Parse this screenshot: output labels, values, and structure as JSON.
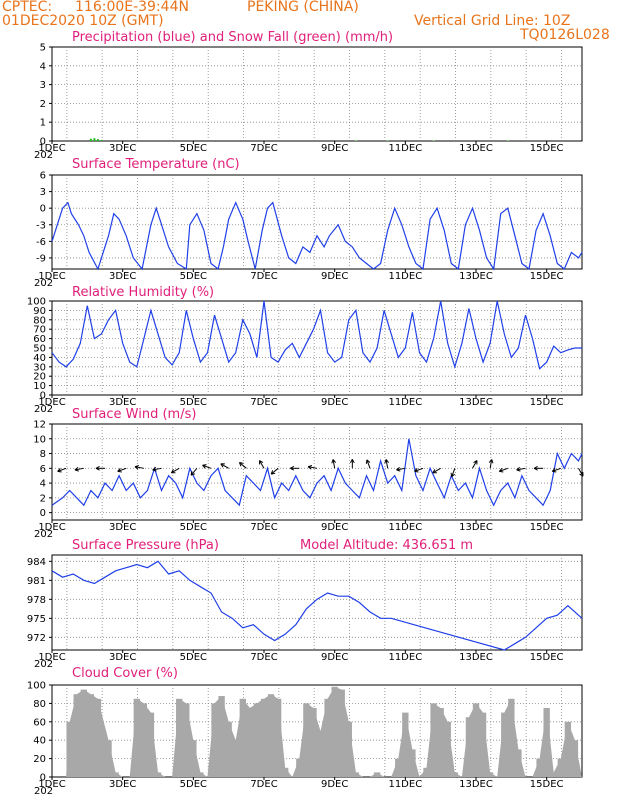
{
  "header": {
    "source": "CPTEC:",
    "location": "116:00E-39:44N",
    "station": "PEKING (CHINA)",
    "run": "01DEC2020 10Z (GMT)",
    "grid_note": "Vertical Grid Line: 10Z",
    "model_code": "TQ0126L028"
  },
  "colors": {
    "header": "#e8741c",
    "title": "#e0207a",
    "line": "#2040e8",
    "snow": "#20c020",
    "cloud": "#a8a8a8",
    "axis": "#000000"
  },
  "x_ticks": [
    "1DEC",
    "3DEC",
    "5DEC",
    "7DEC",
    "9DEC",
    "11DEC",
    "13DEC",
    "15DEC"
  ],
  "year_fragment": "202",
  "chart_data": [
    {
      "id": "precip",
      "type": "bar",
      "title": "Precipitation (blue) and Snow Fall (green) (mm/h)",
      "ylim": [
        0,
        5
      ],
      "yticks": [
        "0",
        "1",
        "2",
        "3",
        "4",
        "5"
      ],
      "x_range_days": [
        0,
        15
      ],
      "series": [
        {
          "color": "green",
          "points": [
            [
              1.1,
              0.12
            ],
            [
              1.2,
              0.15
            ],
            [
              1.3,
              0.1
            ],
            [
              1.4,
              0.05
            ],
            [
              8.6,
              0.03
            ],
            [
              9.5,
              0.03
            ],
            [
              10.8,
              0.03
            ],
            [
              12.9,
              0.03
            ]
          ]
        },
        {
          "color": "blue",
          "points": []
        }
      ]
    },
    {
      "id": "temp",
      "type": "line",
      "title": "Surface Temperature (nC)",
      "ylim": [
        -11,
        6
      ],
      "yticks": [
        "-9",
        "-6",
        "-3",
        "0",
        "3",
        "6"
      ],
      "x": [
        0,
        0.15,
        0.3,
        0.45,
        0.55,
        0.75,
        0.9,
        1.05,
        1.3,
        1.6,
        1.75,
        1.9,
        2.1,
        2.3,
        2.55,
        2.8,
        2.95,
        3.05,
        3.3,
        3.55,
        3.8,
        3.9,
        4.1,
        4.3,
        4.5,
        4.7,
        4.85,
        5.0,
        5.2,
        5.4,
        5.55,
        5.75,
        5.95,
        6.1,
        6.25,
        6.5,
        6.7,
        6.9,
        7.1,
        7.3,
        7.5,
        7.7,
        7.85,
        8.1,
        8.3,
        8.5,
        8.7,
        8.9,
        9.1,
        9.3,
        9.5,
        9.7,
        9.9,
        10.1,
        10.3,
        10.5,
        10.7,
        10.9,
        11.1,
        11.3,
        11.5,
        11.7,
        11.9,
        12.1,
        12.3,
        12.5,
        12.7,
        12.9,
        13.1,
        13.3,
        13.5,
        13.7,
        13.9,
        14.1,
        14.3,
        14.5,
        14.7,
        14.9,
        15
      ],
      "y": [
        -6,
        -3,
        0,
        1,
        -1,
        -3,
        -5,
        -8,
        -11,
        -5,
        -1,
        -2,
        -5,
        -9,
        -11,
        -3,
        0,
        -2,
        -7,
        -10,
        -11,
        -3,
        -1,
        -4,
        -10,
        -11,
        -7,
        -2,
        1,
        -2,
        -6,
        -11,
        -4,
        0,
        1,
        -5,
        -9,
        -10,
        -7,
        -8,
        -5,
        -7,
        -5,
        -3,
        -6,
        -7,
        -9,
        -10,
        -11,
        -10,
        -4,
        0,
        -3,
        -7,
        -10,
        -11,
        -2,
        0,
        -4,
        -10,
        -11,
        -3,
        0,
        -4,
        -9,
        -11,
        -1,
        0,
        -5,
        -10,
        -11,
        -4,
        -1,
        -5,
        -10,
        -11,
        -8,
        -9,
        -8
      ],
      "x_tick_offset_days": 0
    },
    {
      "id": "rh",
      "type": "line",
      "title": "Relative Humidity (%)",
      "ylim": [
        0,
        100
      ],
      "yticks": [
        "0",
        "10",
        "20",
        "30",
        "40",
        "50",
        "60",
        "70",
        "80",
        "90",
        "100"
      ],
      "x": [
        0,
        0.2,
        0.4,
        0.6,
        0.8,
        1.0,
        1.2,
        1.4,
        1.6,
        1.8,
        2.0,
        2.2,
        2.4,
        2.6,
        2.8,
        3.0,
        3.2,
        3.4,
        3.6,
        3.8,
        4.0,
        4.2,
        4.4,
        4.6,
        4.8,
        5.0,
        5.2,
        5.4,
        5.6,
        5.8,
        6.0,
        6.2,
        6.4,
        6.6,
        6.8,
        7.0,
        7.2,
        7.4,
        7.6,
        7.8,
        8.0,
        8.2,
        8.4,
        8.6,
        8.8,
        9.0,
        9.2,
        9.4,
        9.6,
        9.8,
        10.0,
        10.2,
        10.4,
        10.6,
        10.8,
        11.0,
        11.2,
        11.4,
        11.6,
        11.8,
        12.0,
        12.2,
        12.4,
        12.6,
        12.8,
        13.0,
        13.2,
        13.4,
        13.6,
        13.8,
        14.0,
        14.2,
        14.4,
        14.6,
        14.8,
        15.0
      ],
      "y": [
        45,
        35,
        30,
        38,
        55,
        95,
        60,
        65,
        80,
        90,
        55,
        35,
        30,
        60,
        90,
        65,
        40,
        32,
        45,
        90,
        60,
        35,
        45,
        85,
        60,
        35,
        45,
        80,
        65,
        40,
        100,
        40,
        35,
        48,
        55,
        40,
        55,
        70,
        90,
        45,
        35,
        40,
        80,
        90,
        45,
        35,
        50,
        90,
        65,
        40,
        50,
        88,
        45,
        35,
        60,
        100,
        55,
        30,
        55,
        92,
        60,
        35,
        55,
        100,
        65,
        40,
        50,
        85,
        60,
        28,
        35,
        52,
        45,
        48,
        50,
        50
      ],
      "x_tick_offset_days": 0
    },
    {
      "id": "wind",
      "type": "line",
      "title": "Surface Wind (m/s)",
      "ylim": [
        -1,
        12
      ],
      "yticks": [
        "0",
        "2",
        "4",
        "6",
        "8",
        "10",
        "12"
      ],
      "x": [
        0,
        0.3,
        0.5,
        0.7,
        0.9,
        1.1,
        1.3,
        1.5,
        1.7,
        1.9,
        2.1,
        2.3,
        2.5,
        2.7,
        2.9,
        3.1,
        3.3,
        3.5,
        3.7,
        3.9,
        4.1,
        4.3,
        4.5,
        4.7,
        4.9,
        5.1,
        5.3,
        5.5,
        5.7,
        5.9,
        6.1,
        6.3,
        6.5,
        6.7,
        6.9,
        7.1,
        7.3,
        7.5,
        7.7,
        7.9,
        8.1,
        8.3,
        8.5,
        8.7,
        8.9,
        9.1,
        9.3,
        9.5,
        9.7,
        9.9,
        10.1,
        10.3,
        10.5,
        10.7,
        10.9,
        11.1,
        11.3,
        11.5,
        11.7,
        11.9,
        12.1,
        12.3,
        12.5,
        12.7,
        12.9,
        13.1,
        13.3,
        13.5,
        13.7,
        13.9,
        14.1,
        14.3,
        14.5,
        14.7,
        14.9,
        15.0
      ],
      "y": [
        1,
        2,
        3,
        2,
        1,
        3,
        2,
        4,
        3,
        5,
        3,
        4,
        2,
        3,
        6,
        3,
        5,
        4,
        2,
        6,
        4,
        3,
        5,
        6,
        3,
        2,
        1,
        5,
        4,
        3,
        6,
        2,
        4,
        3,
        5,
        3,
        2,
        4,
        5,
        3,
        6,
        4,
        3,
        2,
        5,
        3,
        7,
        4,
        5,
        3,
        10,
        5,
        3,
        6,
        4,
        2,
        5,
        3,
        4,
        2,
        6,
        3,
        1,
        3,
        4,
        2,
        5,
        3,
        2,
        1,
        3,
        8,
        6,
        8,
        7,
        8
      ],
      "x_tick_offset_days": 0
    },
    {
      "id": "pressure",
      "type": "line",
      "title": "Surface Pressure (hPa)",
      "annotation": "Model Altitude: 436.651 m",
      "ylim": [
        970,
        985
      ],
      "yticks": [
        "972",
        "975",
        "978",
        "981",
        "984"
      ],
      "x": [
        0,
        0.3,
        0.6,
        0.9,
        1.2,
        1.5,
        1.8,
        2.1,
        2.4,
        2.7,
        3.0,
        3.3,
        3.6,
        3.9,
        4.2,
        4.5,
        4.8,
        5.1,
        5.4,
        5.7,
        6.0,
        6.3,
        6.6,
        6.9,
        7.2,
        7.5,
        7.8,
        8.1,
        8.4,
        8.7,
        9.0,
        9.3,
        9.6,
        12.8,
        13.1,
        13.4,
        13.7,
        14.0,
        14.3,
        14.6,
        14.9,
        15.0
      ],
      "y": [
        982.5,
        981.5,
        982,
        981,
        980.5,
        981.5,
        982.5,
        983,
        983.5,
        983,
        984,
        982,
        982.5,
        981,
        980,
        979,
        976,
        975,
        973.5,
        974,
        972.5,
        971.5,
        972.5,
        974,
        976.5,
        978,
        979,
        978.5,
        978.5,
        977.5,
        976,
        975,
        975,
        970,
        971,
        972,
        973.5,
        975,
        975.5,
        977,
        975.5,
        975
      ],
      "x_tick_offset_days": 0
    },
    {
      "id": "cloud",
      "type": "area",
      "title": "Cloud Cover (%)",
      "ylim": [
        0,
        100
      ],
      "yticks": [
        "0",
        "20",
        "40",
        "60",
        "80",
        "100"
      ],
      "x": [
        0,
        0.4,
        0.5,
        0.7,
        0.9,
        1.1,
        1.3,
        1.6,
        1.8,
        2.0,
        2.2,
        2.4,
        2.6,
        2.8,
        3.0,
        3.2,
        3.4,
        3.6,
        3.8,
        4.0,
        4.2,
        4.4,
        4.6,
        4.8,
        5.0,
        5.2,
        5.4,
        5.6,
        5.8,
        6.0,
        6.2,
        6.4,
        6.6,
        6.8,
        7.0,
        7.2,
        7.4,
        7.6,
        7.8,
        8.0,
        8.2,
        8.4,
        8.6,
        8.8,
        9.0,
        9.2,
        9.4,
        9.6,
        9.8,
        10.0,
        10.2,
        10.4,
        10.6,
        10.8,
        11.0,
        11.2,
        11.4,
        11.6,
        11.8,
        12.0,
        12.2,
        12.4,
        12.6,
        12.8,
        13.0,
        13.2,
        13.4,
        13.6,
        13.8,
        14.0,
        14.2,
        14.4,
        14.6,
        14.8,
        15.0
      ],
      "y": [
        0,
        0,
        60,
        90,
        95,
        90,
        85,
        40,
        5,
        0,
        0,
        85,
        80,
        70,
        5,
        0,
        0,
        85,
        80,
        40,
        5,
        0,
        80,
        88,
        60,
        40,
        85,
        75,
        80,
        85,
        90,
        85,
        10,
        0,
        20,
        80,
        75,
        50,
        85,
        98,
        95,
        60,
        5,
        0,
        0,
        5,
        0,
        0,
        20,
        70,
        30,
        0,
        10,
        80,
        75,
        60,
        5,
        0,
        65,
        80,
        70,
        5,
        0,
        70,
        85,
        30,
        0,
        0,
        20,
        75,
        5,
        20,
        60,
        40,
        0
      ],
      "x_tick_offset_days": 0
    }
  ]
}
